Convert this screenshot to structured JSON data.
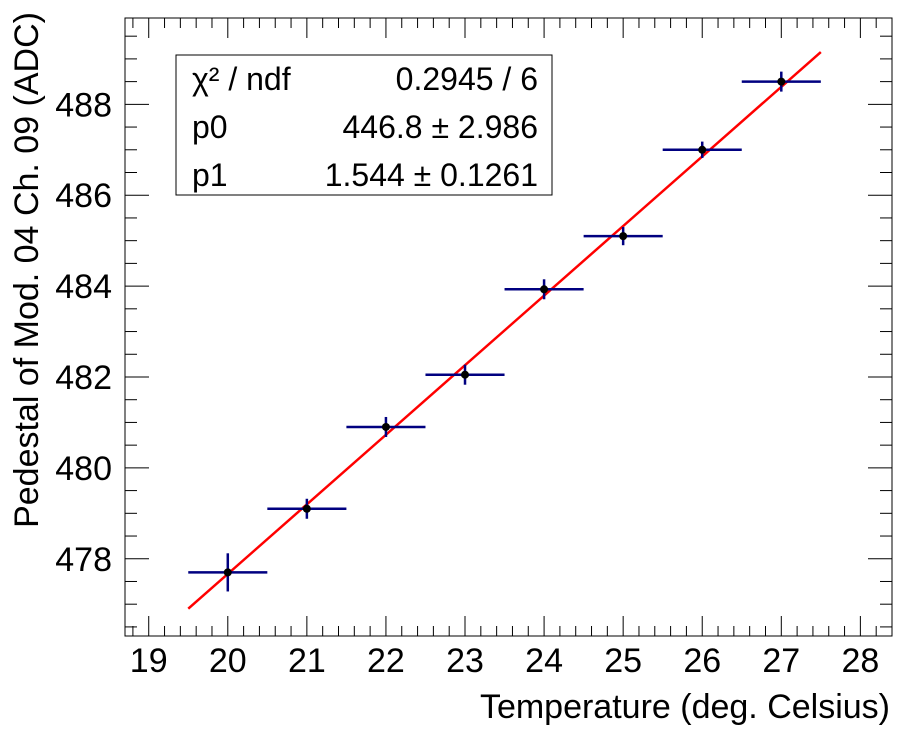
{
  "chart_data": {
    "type": "scatter",
    "xlabel": "Temperature (deg. Celsius)",
    "ylabel": "Pedestal of Mod. 04 Ch. 09 (ADC)",
    "xlim": [
      18.7,
      28.4
    ],
    "ylim": [
      476.3,
      489.9
    ],
    "x_ticks": [
      19,
      20,
      21,
      22,
      23,
      24,
      25,
      26,
      27,
      28
    ],
    "x_tick_labels": [
      "19",
      "20",
      "21",
      "22",
      "23",
      "24",
      "25",
      "26",
      "27",
      "28"
    ],
    "y_ticks": [
      478,
      480,
      482,
      484,
      486,
      488
    ],
    "y_tick_labels": [
      "478",
      "480",
      "482",
      "484",
      "486",
      "488"
    ],
    "grid": false,
    "series": [
      {
        "type": "points-with-errors",
        "color": "#000000",
        "error_color": "#000080",
        "points": [
          {
            "x": 20,
            "y": 477.7,
            "xerr": 0.5,
            "yerr": 0.42
          },
          {
            "x": 21,
            "y": 479.1,
            "xerr": 0.5,
            "yerr": 0.22
          },
          {
            "x": 22,
            "y": 480.9,
            "xerr": 0.5,
            "yerr": 0.22
          },
          {
            "x": 23,
            "y": 482.05,
            "xerr": 0.5,
            "yerr": 0.22
          },
          {
            "x": 24,
            "y": 483.93,
            "xerr": 0.5,
            "yerr": 0.22
          },
          {
            "x": 25,
            "y": 485.1,
            "xerr": 0.5,
            "yerr": 0.2
          },
          {
            "x": 26,
            "y": 487.0,
            "xerr": 0.5,
            "yerr": 0.18
          },
          {
            "x": 27,
            "y": 488.5,
            "xerr": 0.5,
            "yerr": 0.22
          }
        ]
      },
      {
        "type": "line",
        "color": "#ff0000",
        "x": [
          19.5,
          27.5
        ],
        "y": [
          476.9,
          489.15
        ]
      }
    ],
    "stats_box": {
      "placement": "top-left",
      "rows": [
        {
          "name": "χ² / ndf",
          "value": "0.2945 / 6"
        },
        {
          "name": "p0",
          "value": "446.8 ± 2.986"
        },
        {
          "name": "p1",
          "value": "1.544 ± 0.1261"
        }
      ]
    }
  }
}
